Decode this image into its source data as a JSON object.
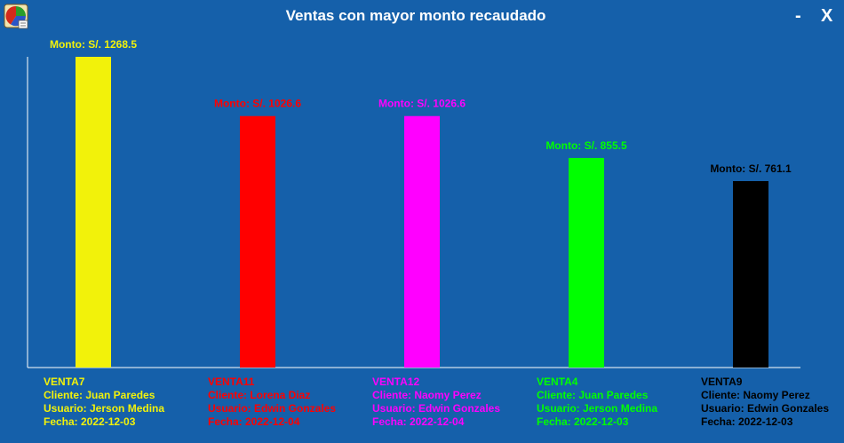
{
  "window": {
    "title": "Ventas con mayor monto recaudado",
    "minimize_label": "-",
    "close_label": "X",
    "app_icon": "pie-chart-icon"
  },
  "chart_data": {
    "type": "bar",
    "title": "Ventas con mayor monto recaudado",
    "xlabel": "",
    "ylabel": "",
    "grid": false,
    "bars": [
      {
        "name": "VENTA7",
        "value": 1268.5,
        "value_label": "Monto: S/. 1268.5",
        "cliente": "Cliente: Juan Paredes",
        "usuario": "Usuario: Jerson Medina",
        "fecha": "Fecha: 2022-12-03",
        "color": "#F2F20A"
      },
      {
        "name": "VENTA11",
        "value": 1026.6,
        "value_label": "Monto: S/. 1026.6",
        "cliente": "Cliente: Lorena Diaz",
        "usuario": "Usuario: Edwin Gonzales",
        "fecha": "Fecha: 2022-12-04",
        "color": "#FF0000"
      },
      {
        "name": "VENTA12",
        "value": 1026.6,
        "value_label": "Monto: S/. 1026.6",
        "cliente": "Cliente: Naomy Perez",
        "usuario": "Usuario: Edwin Gonzales",
        "fecha": "Fecha: 2022-12-04",
        "color": "#FF00FF"
      },
      {
        "name": "VENTA4",
        "value": 855.5,
        "value_label": "Monto: S/. 855.5",
        "cliente": "Cliente: Juan Paredes",
        "usuario": "Usuario: Jerson Medina",
        "fecha": "Fecha: 2022-12-03",
        "color": "#00FF00"
      },
      {
        "name": "VENTA9",
        "value": 761.1,
        "value_label": "Monto: S/. 761.1",
        "cliente": "Cliente: Naomy Perez",
        "usuario": "Usuario: Edwin Gonzales",
        "fecha": "Fecha: 2022-12-03",
        "color": "#000000"
      }
    ]
  },
  "colors": {
    "background": "#1560AA",
    "axis": "#FFFFFF",
    "title_text": "#FFFFFF"
  }
}
